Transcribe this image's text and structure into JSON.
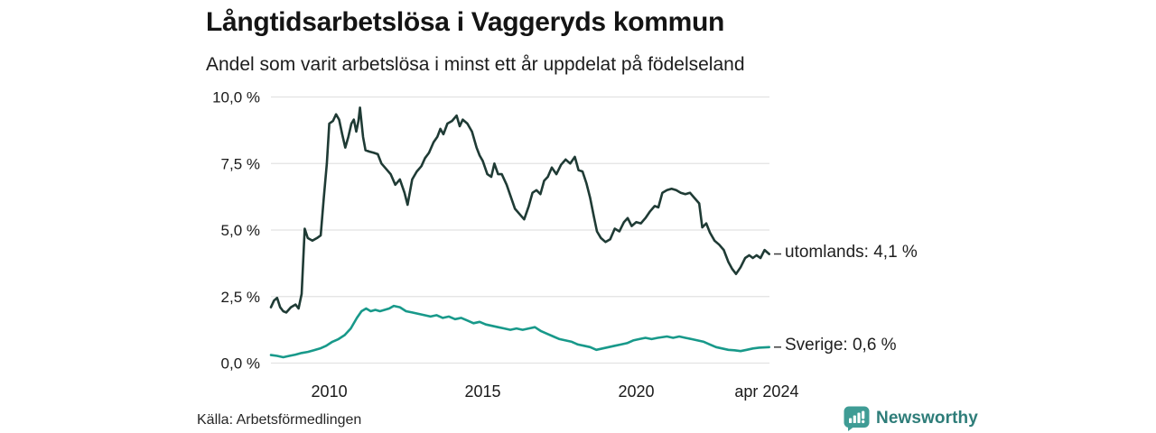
{
  "header": {
    "title": "Långtidsarbetslösa i Vaggeryds kommun",
    "subtitle": "Andel som varit arbetslösa i minst ett år uppdelat på födelseland"
  },
  "footer": {
    "source": "Källa: Arbetsförmedlingen",
    "brand": "Newsworthy"
  },
  "colors": {
    "utomlands_line": "#1f3b35",
    "sverige_line": "#18998a",
    "grid": "#e2e2e2",
    "tick_text": "#1a1a1a",
    "leader_dash": "#3c3c3c",
    "brand_teal": "#2e7d79",
    "brand_icon_bg": "#3f9c95"
  },
  "chart_data": {
    "type": "line",
    "title": "Långtidsarbetslösa i Vaggeryds kommun",
    "subtitle": "Andel som varit arbetslösa i minst ett år uppdelat på födelseland",
    "xlabel": "",
    "ylabel": "",
    "ylim": [
      0,
      10
    ],
    "xlim": [
      2008.1,
      2024.34
    ],
    "grid": "horizontal",
    "legend_position": "end-of-line-labels",
    "y_ticks": [
      {
        "value": 0,
        "label": "0,0 %"
      },
      {
        "value": 2.5,
        "label": "2,5 %"
      },
      {
        "value": 5,
        "label": "5,0 %"
      },
      {
        "value": 7.5,
        "label": "7,5 %"
      },
      {
        "value": 10,
        "label": "10,0 %"
      }
    ],
    "x_ticks": [
      {
        "year": 2010,
        "label": "2010"
      },
      {
        "year": 2015,
        "label": "2015"
      },
      {
        "year": 2020,
        "label": "2020"
      },
      {
        "year": 2024.25,
        "label": "apr 2024"
      }
    ],
    "series": [
      {
        "name": "utomlands",
        "label": "utomlands: 4,1 %",
        "last_value": 4.1,
        "color_key": "utomlands_line",
        "points": [
          [
            2008.1,
            2.1
          ],
          [
            2008.2,
            2.35
          ],
          [
            2008.3,
            2.45
          ],
          [
            2008.4,
            2.1
          ],
          [
            2008.5,
            1.95
          ],
          [
            2008.6,
            1.9
          ],
          [
            2008.75,
            2.1
          ],
          [
            2008.9,
            2.2
          ],
          [
            2009.0,
            2.05
          ],
          [
            2009.1,
            2.6
          ],
          [
            2009.2,
            5.05
          ],
          [
            2009.3,
            4.7
          ],
          [
            2009.45,
            4.6
          ],
          [
            2009.6,
            4.7
          ],
          [
            2009.72,
            4.8
          ],
          [
            2009.82,
            6.2
          ],
          [
            2009.92,
            7.5
          ],
          [
            2010.0,
            9.0
          ],
          [
            2010.12,
            9.1
          ],
          [
            2010.22,
            9.35
          ],
          [
            2010.32,
            9.15
          ],
          [
            2010.42,
            8.6
          ],
          [
            2010.52,
            8.1
          ],
          [
            2010.62,
            8.5
          ],
          [
            2010.72,
            9.0
          ],
          [
            2010.8,
            9.15
          ],
          [
            2010.88,
            8.7
          ],
          [
            2010.95,
            9.1
          ],
          [
            2011.0,
            9.6
          ],
          [
            2011.1,
            8.5
          ],
          [
            2011.18,
            8.0
          ],
          [
            2011.3,
            7.95
          ],
          [
            2011.45,
            7.9
          ],
          [
            2011.58,
            7.85
          ],
          [
            2011.7,
            7.5
          ],
          [
            2011.85,
            7.3
          ],
          [
            2012.0,
            7.1
          ],
          [
            2012.15,
            6.7
          ],
          [
            2012.3,
            6.9
          ],
          [
            2012.45,
            6.4
          ],
          [
            2012.55,
            5.95
          ],
          [
            2012.7,
            6.9
          ],
          [
            2012.85,
            7.2
          ],
          [
            2013.0,
            7.4
          ],
          [
            2013.12,
            7.7
          ],
          [
            2013.25,
            7.9
          ],
          [
            2013.4,
            8.3
          ],
          [
            2013.52,
            8.5
          ],
          [
            2013.62,
            8.8
          ],
          [
            2013.72,
            8.6
          ],
          [
            2013.85,
            9.0
          ],
          [
            2014.0,
            9.1
          ],
          [
            2014.15,
            9.3
          ],
          [
            2014.25,
            8.9
          ],
          [
            2014.35,
            9.15
          ],
          [
            2014.5,
            9.0
          ],
          [
            2014.65,
            8.7
          ],
          [
            2014.8,
            8.1
          ],
          [
            2014.9,
            7.8
          ],
          [
            2015.0,
            7.6
          ],
          [
            2015.15,
            7.1
          ],
          [
            2015.28,
            7.0
          ],
          [
            2015.38,
            7.5
          ],
          [
            2015.5,
            7.1
          ],
          [
            2015.62,
            7.1
          ],
          [
            2015.78,
            6.7
          ],
          [
            2015.9,
            6.3
          ],
          [
            2016.05,
            5.8
          ],
          [
            2016.2,
            5.6
          ],
          [
            2016.35,
            5.4
          ],
          [
            2016.5,
            5.9
          ],
          [
            2016.62,
            6.4
          ],
          [
            2016.75,
            6.5
          ],
          [
            2016.88,
            6.35
          ],
          [
            2017.0,
            6.85
          ],
          [
            2017.12,
            7.0
          ],
          [
            2017.25,
            7.35
          ],
          [
            2017.4,
            7.1
          ],
          [
            2017.55,
            7.45
          ],
          [
            2017.7,
            7.65
          ],
          [
            2017.85,
            7.5
          ],
          [
            2018.0,
            7.75
          ],
          [
            2018.12,
            7.25
          ],
          [
            2018.25,
            7.2
          ],
          [
            2018.38,
            6.75
          ],
          [
            2018.5,
            6.2
          ],
          [
            2018.62,
            5.5
          ],
          [
            2018.72,
            4.95
          ],
          [
            2018.85,
            4.7
          ],
          [
            2019.0,
            4.55
          ],
          [
            2019.15,
            4.65
          ],
          [
            2019.3,
            5.05
          ],
          [
            2019.45,
            4.95
          ],
          [
            2019.6,
            5.3
          ],
          [
            2019.72,
            5.45
          ],
          [
            2019.85,
            5.15
          ],
          [
            2020.0,
            5.3
          ],
          [
            2020.15,
            5.25
          ],
          [
            2020.3,
            5.45
          ],
          [
            2020.45,
            5.7
          ],
          [
            2020.6,
            5.9
          ],
          [
            2020.72,
            5.85
          ],
          [
            2020.85,
            6.4
          ],
          [
            2021.0,
            6.5
          ],
          [
            2021.15,
            6.55
          ],
          [
            2021.3,
            6.5
          ],
          [
            2021.45,
            6.4
          ],
          [
            2021.6,
            6.35
          ],
          [
            2021.75,
            6.4
          ],
          [
            2021.9,
            6.2
          ],
          [
            2022.05,
            6.0
          ],
          [
            2022.15,
            5.1
          ],
          [
            2022.28,
            5.25
          ],
          [
            2022.4,
            4.9
          ],
          [
            2022.55,
            4.6
          ],
          [
            2022.7,
            4.45
          ],
          [
            2022.85,
            4.25
          ],
          [
            2023.0,
            3.8
          ],
          [
            2023.12,
            3.55
          ],
          [
            2023.25,
            3.35
          ],
          [
            2023.4,
            3.6
          ],
          [
            2023.55,
            3.95
          ],
          [
            2023.68,
            4.05
          ],
          [
            2023.8,
            3.95
          ],
          [
            2023.92,
            4.05
          ],
          [
            2024.05,
            3.95
          ],
          [
            2024.18,
            4.25
          ],
          [
            2024.33,
            4.1
          ]
        ]
      },
      {
        "name": "Sverige",
        "label": "Sverige: 0,6 %",
        "last_value": 0.6,
        "color_key": "sverige_line",
        "points": [
          [
            2008.1,
            0.3
          ],
          [
            2008.3,
            0.27
          ],
          [
            2008.5,
            0.22
          ],
          [
            2008.7,
            0.27
          ],
          [
            2008.9,
            0.32
          ],
          [
            2009.1,
            0.38
          ],
          [
            2009.3,
            0.42
          ],
          [
            2009.5,
            0.48
          ],
          [
            2009.7,
            0.55
          ],
          [
            2009.9,
            0.65
          ],
          [
            2010.1,
            0.8
          ],
          [
            2010.3,
            0.9
          ],
          [
            2010.5,
            1.05
          ],
          [
            2010.7,
            1.3
          ],
          [
            2010.9,
            1.7
          ],
          [
            2011.05,
            1.95
          ],
          [
            2011.2,
            2.05
          ],
          [
            2011.35,
            1.95
          ],
          [
            2011.5,
            2.0
          ],
          [
            2011.65,
            1.95
          ],
          [
            2011.8,
            2.0
          ],
          [
            2011.95,
            2.05
          ],
          [
            2012.1,
            2.15
          ],
          [
            2012.3,
            2.1
          ],
          [
            2012.5,
            1.95
          ],
          [
            2012.7,
            1.9
          ],
          [
            2012.9,
            1.85
          ],
          [
            2013.1,
            1.8
          ],
          [
            2013.3,
            1.75
          ],
          [
            2013.5,
            1.8
          ],
          [
            2013.7,
            1.7
          ],
          [
            2013.9,
            1.75
          ],
          [
            2014.1,
            1.65
          ],
          [
            2014.3,
            1.7
          ],
          [
            2014.5,
            1.6
          ],
          [
            2014.7,
            1.5
          ],
          [
            2014.9,
            1.55
          ],
          [
            2015.1,
            1.45
          ],
          [
            2015.3,
            1.4
          ],
          [
            2015.5,
            1.35
          ],
          [
            2015.7,
            1.3
          ],
          [
            2015.9,
            1.25
          ],
          [
            2016.1,
            1.3
          ],
          [
            2016.3,
            1.25
          ],
          [
            2016.5,
            1.3
          ],
          [
            2016.7,
            1.35
          ],
          [
            2016.9,
            1.2
          ],
          [
            2017.1,
            1.1
          ],
          [
            2017.3,
            1.0
          ],
          [
            2017.5,
            0.9
          ],
          [
            2017.7,
            0.85
          ],
          [
            2017.9,
            0.8
          ],
          [
            2018.1,
            0.7
          ],
          [
            2018.3,
            0.65
          ],
          [
            2018.5,
            0.6
          ],
          [
            2018.7,
            0.5
          ],
          [
            2018.9,
            0.55
          ],
          [
            2019.1,
            0.6
          ],
          [
            2019.3,
            0.65
          ],
          [
            2019.5,
            0.7
          ],
          [
            2019.7,
            0.75
          ],
          [
            2019.9,
            0.85
          ],
          [
            2020.1,
            0.9
          ],
          [
            2020.3,
            0.95
          ],
          [
            2020.5,
            0.9
          ],
          [
            2020.7,
            0.95
          ],
          [
            2021.0,
            1.0
          ],
          [
            2021.2,
            0.95
          ],
          [
            2021.4,
            1.0
          ],
          [
            2021.6,
            0.95
          ],
          [
            2021.8,
            0.9
          ],
          [
            2022.0,
            0.85
          ],
          [
            2022.2,
            0.8
          ],
          [
            2022.4,
            0.7
          ],
          [
            2022.6,
            0.6
          ],
          [
            2022.8,
            0.55
          ],
          [
            2023.0,
            0.5
          ],
          [
            2023.2,
            0.48
          ],
          [
            2023.4,
            0.45
          ],
          [
            2023.6,
            0.5
          ],
          [
            2023.8,
            0.55
          ],
          [
            2024.0,
            0.58
          ],
          [
            2024.33,
            0.6
          ]
        ]
      }
    ]
  }
}
